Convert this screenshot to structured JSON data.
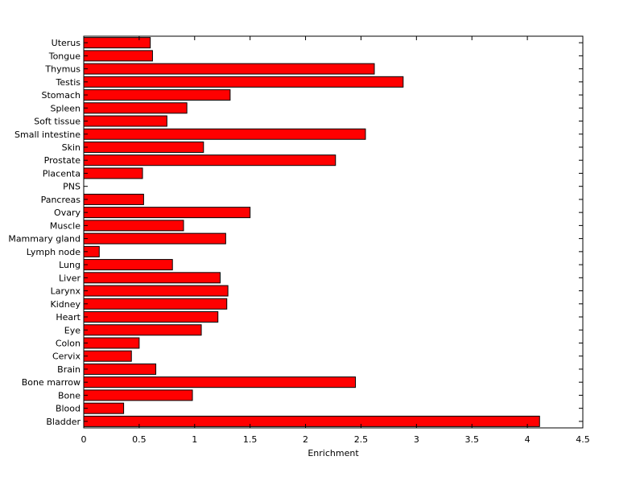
{
  "chart_data": {
    "type": "bar",
    "orientation": "horizontal",
    "title": "",
    "xlabel": "Enrichment",
    "ylabel": "",
    "xlim": [
      0,
      4.5
    ],
    "xticks": [
      "0",
      "0.5",
      "1",
      "1.5",
      "2",
      "2.5",
      "3",
      "3.5",
      "4",
      "4.5"
    ],
    "grid": false,
    "bar_color": "#ff0000",
    "bar_edge_color": "#000000",
    "categories": [
      "Bladder",
      "Blood",
      "Bone",
      "Bone marrow",
      "Brain",
      "Cervix",
      "Colon",
      "Eye",
      "Heart",
      "Kidney",
      "Larynx",
      "Liver",
      "Lung",
      "Lymph node",
      "Mammary gland",
      "Muscle",
      "Ovary",
      "Pancreas",
      "PNS",
      "Placenta",
      "Prostate",
      "Skin",
      "Small intestine",
      "Soft tissue",
      "Spleen",
      "Stomach",
      "Testis",
      "Thymus",
      "Tongue",
      "Uterus"
    ],
    "values": [
      4.11,
      0.36,
      0.98,
      2.45,
      0.65,
      0.43,
      0.5,
      1.06,
      1.21,
      1.29,
      1.3,
      1.23,
      0.8,
      0.14,
      1.28,
      0.9,
      1.5,
      0.54,
      0.0,
      0.53,
      2.27,
      1.08,
      2.54,
      0.75,
      0.93,
      1.32,
      2.88,
      2.62,
      0.62,
      0.6
    ]
  }
}
